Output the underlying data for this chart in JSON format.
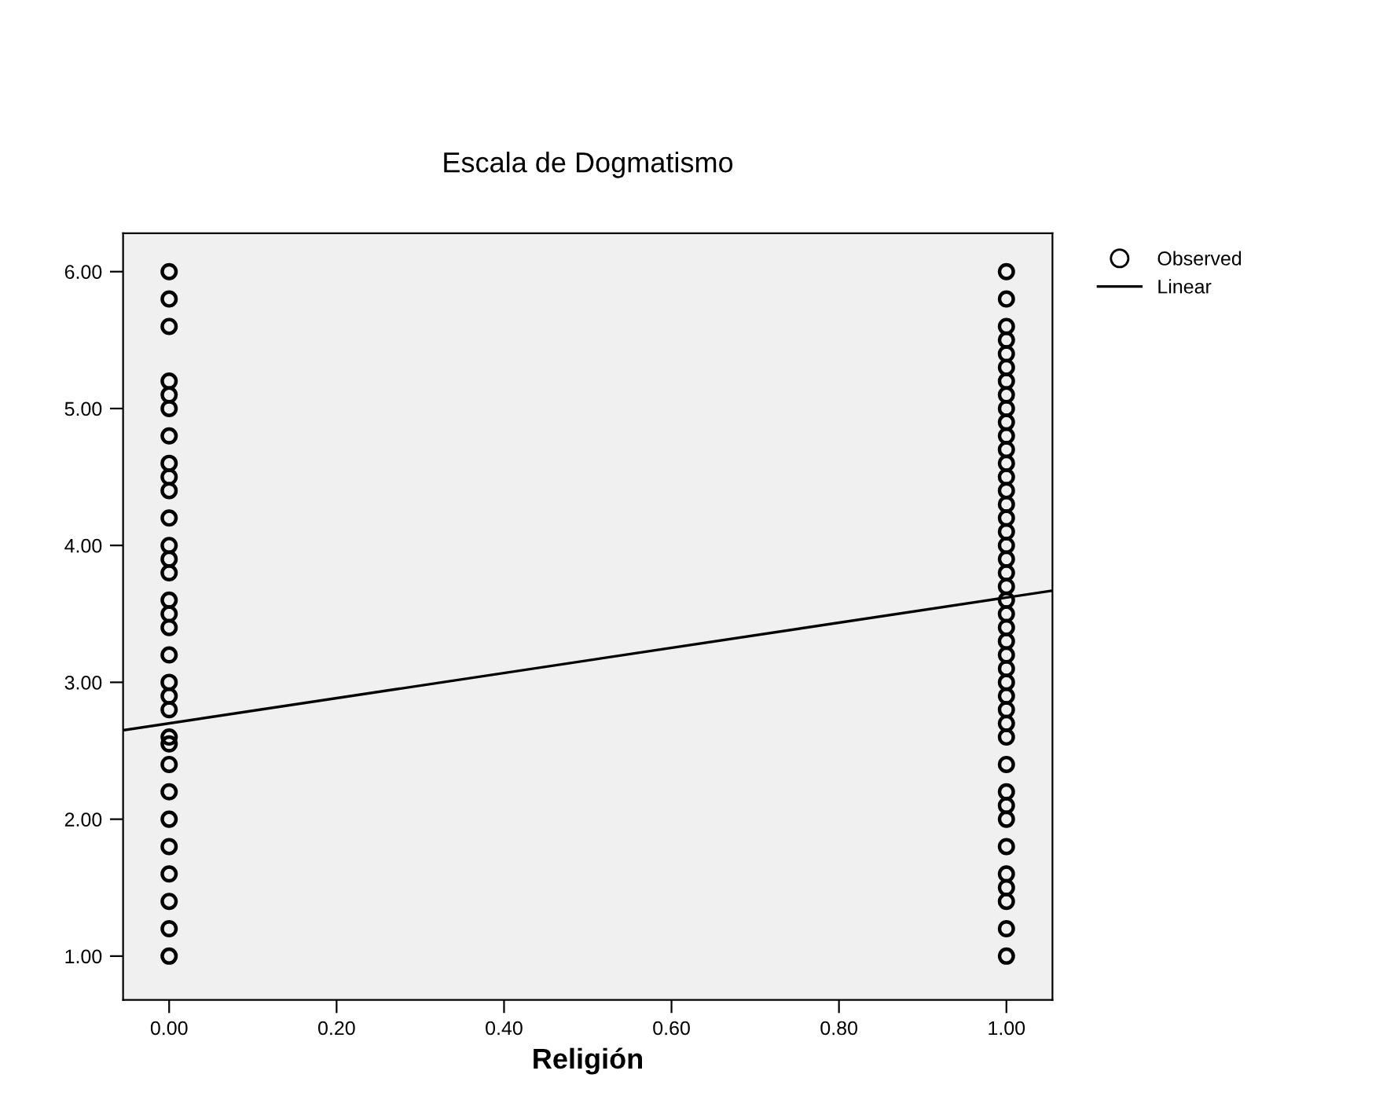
{
  "chart_data": {
    "type": "scatter",
    "title": "Escala de Dogmatismo",
    "xlabel": "Religión",
    "xlim": [
      -0.055,
      1.055
    ],
    "ylim": [
      0.68,
      6.28
    ],
    "xticks": [
      {
        "value": 0,
        "label": "0.00"
      },
      {
        "value": 0.2,
        "label": "0.20"
      },
      {
        "value": 0.4,
        "label": "0.40"
      },
      {
        "value": 0.6,
        "label": "0.60"
      },
      {
        "value": 0.8,
        "label": "0.80"
      },
      {
        "value": 1,
        "label": "1.00"
      }
    ],
    "yticks": [
      {
        "value": 1,
        "label": "1.00"
      },
      {
        "value": 2,
        "label": "2.00"
      },
      {
        "value": 3,
        "label": "3.00"
      },
      {
        "value": 4,
        "label": "4.00"
      },
      {
        "value": 5,
        "label": "5.00"
      },
      {
        "value": 6,
        "label": "6.00"
      }
    ],
    "grid": false,
    "legend": "top right",
    "marker": "circle",
    "series": [
      {
        "name": "Observed",
        "color": "#000000",
        "x": [
          0,
          0,
          0,
          0,
          0,
          0,
          0,
          0,
          0,
          0,
          0,
          0,
          0,
          0,
          0,
          0,
          0,
          0,
          0,
          0,
          0,
          0,
          0,
          0,
          0,
          0,
          0,
          0,
          0,
          0,
          0,
          1,
          1,
          1,
          1,
          1,
          1,
          1,
          1,
          1,
          1,
          1,
          1,
          1,
          1,
          1,
          1,
          1,
          1,
          1,
          1,
          1,
          1,
          1,
          1,
          1,
          1,
          1,
          1,
          1,
          1,
          1,
          1,
          1,
          1,
          1,
          1,
          1,
          1,
          1,
          1,
          1,
          1,
          1
        ],
        "values": [
          6.0,
          5.8,
          5.6,
          5.2,
          5.1,
          5.0,
          4.8,
          4.6,
          4.5,
          4.4,
          4.2,
          4.0,
          3.9,
          3.8,
          3.6,
          3.5,
          3.4,
          3.2,
          3.0,
          2.9,
          2.8,
          2.6,
          2.55,
          2.4,
          2.2,
          2.0,
          1.8,
          1.6,
          1.4,
          1.2,
          1.0,
          6.0,
          5.8,
          5.6,
          5.5,
          5.4,
          5.3,
          5.2,
          5.1,
          5.0,
          4.9,
          4.8,
          4.7,
          4.6,
          4.5,
          4.4,
          4.3,
          4.2,
          4.1,
          4.0,
          3.9,
          3.8,
          3.7,
          3.6,
          3.5,
          3.4,
          3.3,
          3.2,
          3.1,
          3.0,
          2.9,
          2.8,
          2.7,
          2.6,
          2.4,
          2.2,
          2.1,
          2.0,
          1.8,
          1.6,
          1.5,
          1.4,
          1.2,
          1.0
        ]
      },
      {
        "name": "Linear",
        "type": "line",
        "color": "#000000",
        "line_style": "solid",
        "marker": "none",
        "x": [
          -0.055,
          1.055
        ],
        "values": [
          2.65,
          3.67
        ]
      }
    ]
  }
}
